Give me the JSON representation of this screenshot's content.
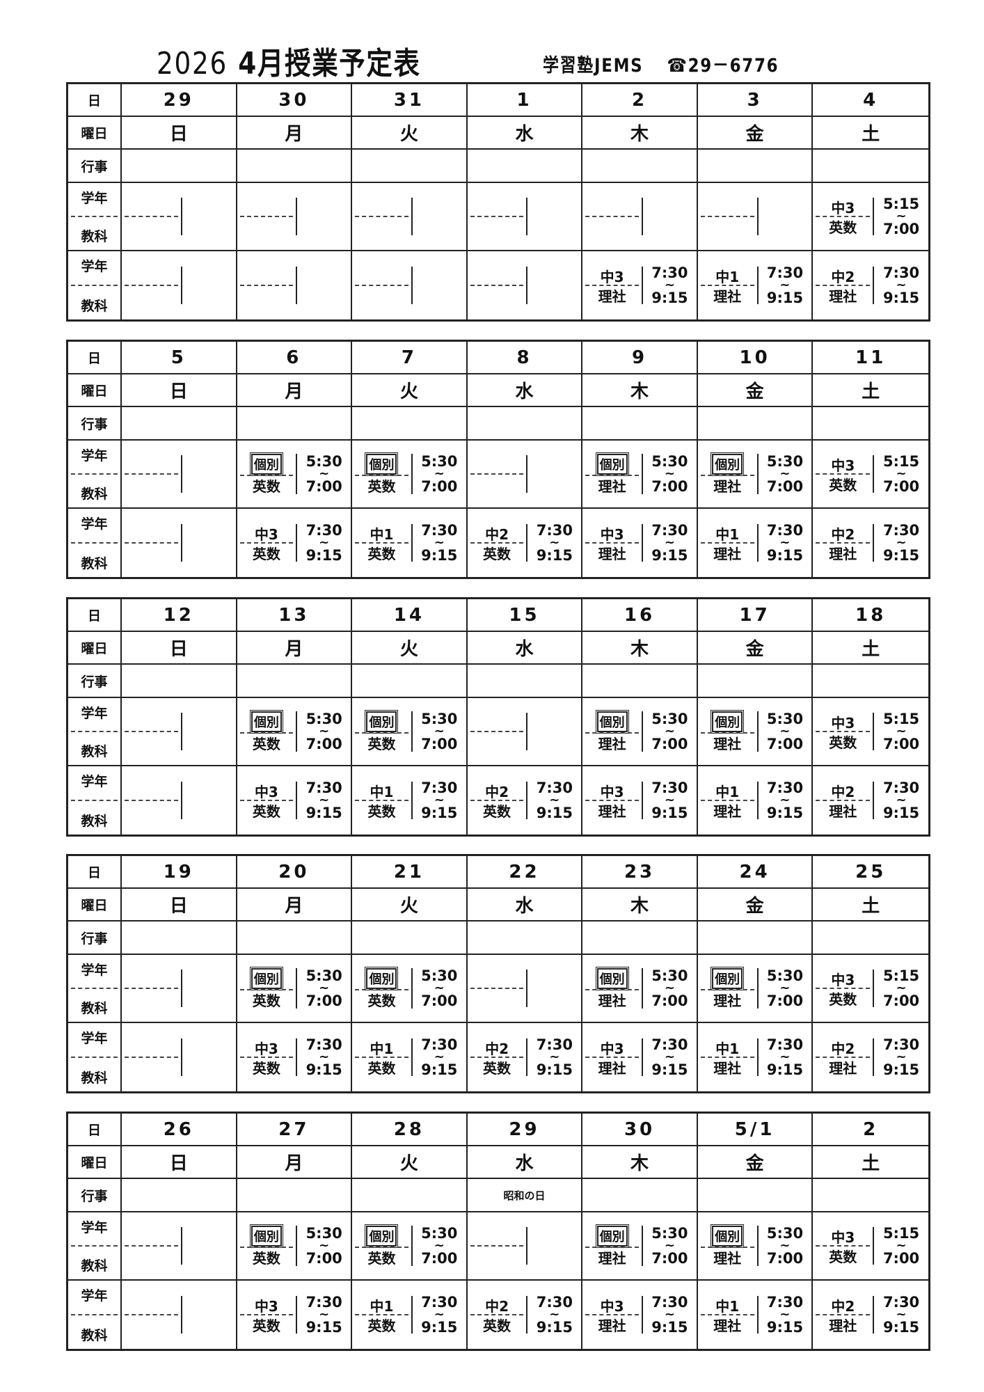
{
  "header": {
    "year": "2026",
    "title": "4月授業予定表",
    "school": "学習塾JEMS",
    "phone": "☎29－6776"
  },
  "labels": {
    "date": "日",
    "weekday": "曜日",
    "event": "行事",
    "grade": "学年",
    "subject": "教科"
  },
  "time_separator": "~",
  "weeks": [
    {
      "days": [
        {
          "date": "29",
          "weekday": "日",
          "event": "",
          "slots": [
            {},
            {}
          ]
        },
        {
          "date": "30",
          "weekday": "月",
          "event": "",
          "slots": [
            {},
            {}
          ]
        },
        {
          "date": "31",
          "weekday": "火",
          "event": "",
          "slots": [
            {},
            {}
          ]
        },
        {
          "date": "1",
          "weekday": "水",
          "event": "",
          "slots": [
            {},
            {}
          ]
        },
        {
          "date": "2",
          "weekday": "木",
          "event": "",
          "slots": [
            {},
            {
              "grade": "中3",
              "subject": "理社",
              "start": "7:30",
              "end": "9:15"
            }
          ]
        },
        {
          "date": "3",
          "weekday": "金",
          "event": "",
          "slots": [
            {},
            {
              "grade": "中1",
              "subject": "理社",
              "start": "7:30",
              "end": "9:15"
            }
          ]
        },
        {
          "date": "4",
          "weekday": "土",
          "event": "",
          "slots": [
            {
              "grade": "中3",
              "subject": "英数",
              "start": "5:15",
              "end": "7:00"
            },
            {
              "grade": "中2",
              "subject": "理社",
              "start": "7:30",
              "end": "9:15"
            }
          ]
        }
      ]
    },
    {
      "days": [
        {
          "date": "5",
          "weekday": "日",
          "event": "",
          "slots": [
            {},
            {}
          ]
        },
        {
          "date": "6",
          "weekday": "月",
          "event": "",
          "slots": [
            {
              "grade": "個別",
              "boxed": true,
              "subject": "英数",
              "start": "5:30",
              "end": "7:00"
            },
            {
              "grade": "中3",
              "subject": "英数",
              "start": "7:30",
              "end": "9:15"
            }
          ]
        },
        {
          "date": "7",
          "weekday": "火",
          "event": "",
          "slots": [
            {
              "grade": "個別",
              "boxed": true,
              "subject": "英数",
              "start": "5:30",
              "end": "7:00"
            },
            {
              "grade": "中1",
              "subject": "英数",
              "start": "7:30",
              "end": "9:15"
            }
          ]
        },
        {
          "date": "8",
          "weekday": "水",
          "event": "",
          "slots": [
            {},
            {
              "grade": "中2",
              "subject": "英数",
              "start": "7:30",
              "end": "9:15"
            }
          ]
        },
        {
          "date": "9",
          "weekday": "木",
          "event": "",
          "slots": [
            {
              "grade": "個別",
              "boxed": true,
              "subject": "理社",
              "start": "5:30",
              "end": "7:00"
            },
            {
              "grade": "中3",
              "subject": "理社",
              "start": "7:30",
              "end": "9:15"
            }
          ]
        },
        {
          "date": "10",
          "weekday": "金",
          "event": "",
          "slots": [
            {
              "grade": "個別",
              "boxed": true,
              "subject": "理社",
              "start": "5:30",
              "end": "7:00"
            },
            {
              "grade": "中1",
              "subject": "理社",
              "start": "7:30",
              "end": "9:15"
            }
          ]
        },
        {
          "date": "11",
          "weekday": "土",
          "event": "",
          "slots": [
            {
              "grade": "中3",
              "subject": "英数",
              "start": "5:15",
              "end": "7:00"
            },
            {
              "grade": "中2",
              "subject": "理社",
              "start": "7:30",
              "end": "9:15"
            }
          ]
        }
      ]
    },
    {
      "days": [
        {
          "date": "12",
          "weekday": "日",
          "event": "",
          "slots": [
            {},
            {}
          ]
        },
        {
          "date": "13",
          "weekday": "月",
          "event": "",
          "slots": [
            {
              "grade": "個別",
              "boxed": true,
              "subject": "英数",
              "start": "5:30",
              "end": "7:00"
            },
            {
              "grade": "中3",
              "subject": "英数",
              "start": "7:30",
              "end": "9:15"
            }
          ]
        },
        {
          "date": "14",
          "weekday": "火",
          "event": "",
          "slots": [
            {
              "grade": "個別",
              "boxed": true,
              "subject": "英数",
              "start": "5:30",
              "end": "7:00"
            },
            {
              "grade": "中1",
              "subject": "英数",
              "start": "7:30",
              "end": "9:15"
            }
          ]
        },
        {
          "date": "15",
          "weekday": "水",
          "event": "",
          "slots": [
            {},
            {
              "grade": "中2",
              "subject": "英数",
              "start": "7:30",
              "end": "9:15"
            }
          ]
        },
        {
          "date": "16",
          "weekday": "木",
          "event": "",
          "slots": [
            {
              "grade": "個別",
              "boxed": true,
              "subject": "理社",
              "start": "5:30",
              "end": "7:00"
            },
            {
              "grade": "中3",
              "subject": "理社",
              "start": "7:30",
              "end": "9:15"
            }
          ]
        },
        {
          "date": "17",
          "weekday": "金",
          "event": "",
          "slots": [
            {
              "grade": "個別",
              "boxed": true,
              "subject": "理社",
              "start": "5:30",
              "end": "7:00"
            },
            {
              "grade": "中1",
              "subject": "理社",
              "start": "7:30",
              "end": "9:15"
            }
          ]
        },
        {
          "date": "18",
          "weekday": "土",
          "event": "",
          "slots": [
            {
              "grade": "中3",
              "subject": "英数",
              "start": "5:15",
              "end": "7:00"
            },
            {
              "grade": "中2",
              "subject": "理社",
              "start": "7:30",
              "end": "9:15"
            }
          ]
        }
      ]
    },
    {
      "days": [
        {
          "date": "19",
          "weekday": "日",
          "event": "",
          "slots": [
            {},
            {}
          ]
        },
        {
          "date": "20",
          "weekday": "月",
          "event": "",
          "slots": [
            {
              "grade": "個別",
              "boxed": true,
              "subject": "英数",
              "start": "5:30",
              "end": "7:00"
            },
            {
              "grade": "中3",
              "subject": "英数",
              "start": "7:30",
              "end": "9:15"
            }
          ]
        },
        {
          "date": "21",
          "weekday": "火",
          "event": "",
          "slots": [
            {
              "grade": "個別",
              "boxed": true,
              "subject": "英数",
              "start": "5:30",
              "end": "7:00"
            },
            {
              "grade": "中1",
              "subject": "英数",
              "start": "7:30",
              "end": "9:15"
            }
          ]
        },
        {
          "date": "22",
          "weekday": "水",
          "event": "",
          "slots": [
            {},
            {
              "grade": "中2",
              "subject": "英数",
              "start": "7:30",
              "end": "9:15"
            }
          ]
        },
        {
          "date": "23",
          "weekday": "木",
          "event": "",
          "slots": [
            {
              "grade": "個別",
              "boxed": true,
              "subject": "理社",
              "start": "5:30",
              "end": "7:00"
            },
            {
              "grade": "中3",
              "subject": "理社",
              "start": "7:30",
              "end": "9:15"
            }
          ]
        },
        {
          "date": "24",
          "weekday": "金",
          "event": "",
          "slots": [
            {
              "grade": "個別",
              "boxed": true,
              "subject": "理社",
              "start": "5:30",
              "end": "7:00"
            },
            {
              "grade": "中1",
              "subject": "理社",
              "start": "7:30",
              "end": "9:15"
            }
          ]
        },
        {
          "date": "25",
          "weekday": "土",
          "event": "",
          "slots": [
            {
              "grade": "中3",
              "subject": "英数",
              "start": "5:15",
              "end": "7:00"
            },
            {
              "grade": "中2",
              "subject": "理社",
              "start": "7:30",
              "end": "9:15"
            }
          ]
        }
      ]
    },
    {
      "days": [
        {
          "date": "26",
          "weekday": "日",
          "event": "",
          "slots": [
            {},
            {}
          ]
        },
        {
          "date": "27",
          "weekday": "月",
          "event": "",
          "slots": [
            {
              "grade": "個別",
              "boxed": true,
              "subject": "英数",
              "start": "5:30",
              "end": "7:00"
            },
            {
              "grade": "中3",
              "subject": "英数",
              "start": "7:30",
              "end": "9:15"
            }
          ]
        },
        {
          "date": "28",
          "weekday": "火",
          "event": "",
          "slots": [
            {
              "grade": "個別",
              "boxed": true,
              "subject": "英数",
              "start": "5:30",
              "end": "7:00"
            },
            {
              "grade": "中1",
              "subject": "英数",
              "start": "7:30",
              "end": "9:15"
            }
          ]
        },
        {
          "date": "29",
          "weekday": "水",
          "event": "昭和の日",
          "slots": [
            {},
            {
              "grade": "中2",
              "subject": "英数",
              "start": "7:30",
              "end": "9:15"
            }
          ]
        },
        {
          "date": "30",
          "weekday": "木",
          "event": "",
          "slots": [
            {
              "grade": "個別",
              "boxed": true,
              "subject": "理社",
              "start": "5:30",
              "end": "7:00"
            },
            {
              "grade": "中3",
              "subject": "理社",
              "start": "7:30",
              "end": "9:15"
            }
          ]
        },
        {
          "date": "5/1",
          "weekday": "金",
          "event": "",
          "slots": [
            {
              "grade": "個別",
              "boxed": true,
              "subject": "理社",
              "start": "5:30",
              "end": "7:00"
            },
            {
              "grade": "中1",
              "subject": "理社",
              "start": "7:30",
              "end": "9:15"
            }
          ]
        },
        {
          "date": "2",
          "weekday": "土",
          "event": "",
          "slots": [
            {
              "grade": "中3",
              "subject": "英数",
              "start": "5:15",
              "end": "7:00"
            },
            {
              "grade": "中2",
              "subject": "理社",
              "start": "7:30",
              "end": "9:15"
            }
          ]
        }
      ]
    }
  ]
}
